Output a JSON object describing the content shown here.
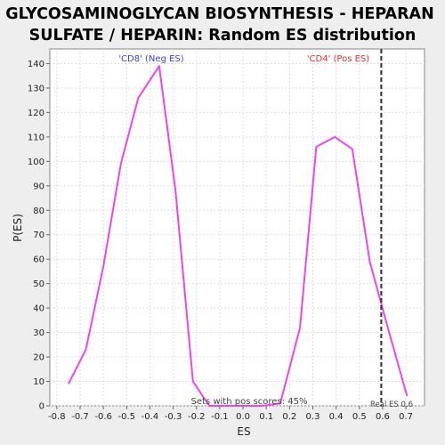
{
  "chart_data": {
    "type": "line",
    "title_lines": [
      "GLYCOSAMINOGLYCAN BIOSYNTHESIS - HEPARAN",
      "SULFATE / HEPARIN: Random ES distribution"
    ],
    "xlabel": "ES",
    "ylabel": "P(ES)",
    "xlim": [
      -0.83,
      0.78
    ],
    "ylim": [
      0,
      146
    ],
    "xticks": [
      -0.8,
      -0.7,
      -0.6,
      -0.5,
      -0.4,
      -0.3,
      -0.2,
      -0.1,
      0.0,
      0.1,
      0.2,
      0.3,
      0.4,
      0.5,
      0.6,
      0.7
    ],
    "yticks": [
      0,
      10,
      20,
      30,
      40,
      50,
      60,
      70,
      80,
      90,
      100,
      110,
      120,
      130,
      140
    ],
    "grid": true,
    "series": [
      {
        "color": "#ee44ee",
        "x": [
          -0.75,
          -0.675,
          -0.6,
          -0.525,
          -0.45,
          -0.36,
          -0.29,
          -0.215,
          -0.145,
          -0.07,
          0.0,
          0.085,
          0.16,
          0.245,
          0.315,
          0.395,
          0.47,
          0.545,
          0.625,
          0.705
        ],
        "y": [
          9,
          23,
          57,
          99,
          126,
          139,
          88,
          10,
          0,
          0,
          0,
          0,
          1,
          32,
          106,
          110,
          105,
          59,
          31,
          4
        ]
      }
    ],
    "neg_label": "'CD8' (Neg ES)",
    "neg_color": "#4040cc",
    "pos_label": "'CD4' (Pos ES)",
    "pos_color": "#e03030",
    "real_es": {
      "value": 0.594,
      "label": "Real ES 0.6"
    },
    "footnote": "Sets with pos scores: 45%"
  }
}
